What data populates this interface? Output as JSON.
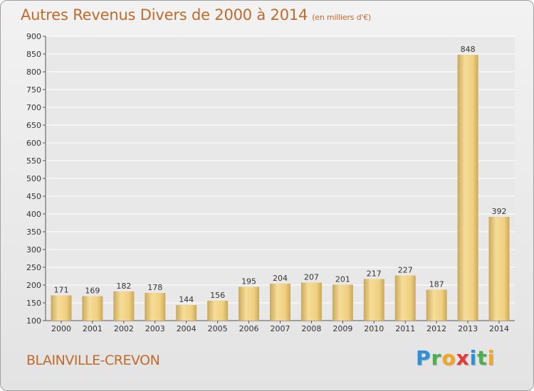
{
  "header": {
    "title": "Autres Revenus Divers de 2000 à 2014",
    "unit": "(en milliers d'€)"
  },
  "footer": {
    "commune": "BLAINVILLE-CREVON",
    "logo_letters": [
      "P",
      "r",
      "o",
      "x",
      "i",
      "t",
      "i"
    ],
    "logo_colors": [
      "#2f8fd8",
      "#4caf50",
      "#f5a623",
      "#e53935",
      "#2f8fd8",
      "#4caf50",
      "#f5a623"
    ]
  },
  "chart_data": {
    "type": "bar",
    "title": "Autres Revenus Divers de 2000 à 2014",
    "xlabel": "",
    "ylabel": "",
    "categories": [
      "2000",
      "2001",
      "2002",
      "2003",
      "2004",
      "2005",
      "2006",
      "2007",
      "2008",
      "2009",
      "2010",
      "2011",
      "2012",
      "2013",
      "2014"
    ],
    "values": [
      171,
      169,
      182,
      178,
      144,
      156,
      195,
      204,
      207,
      201,
      217,
      227,
      187,
      848,
      392
    ],
    "ylim": [
      100,
      900
    ],
    "yticks": [
      100,
      150,
      200,
      250,
      300,
      350,
      400,
      450,
      500,
      550,
      600,
      650,
      700,
      750,
      800,
      850,
      900
    ],
    "grid": true,
    "bar_color": "#e7c877"
  }
}
